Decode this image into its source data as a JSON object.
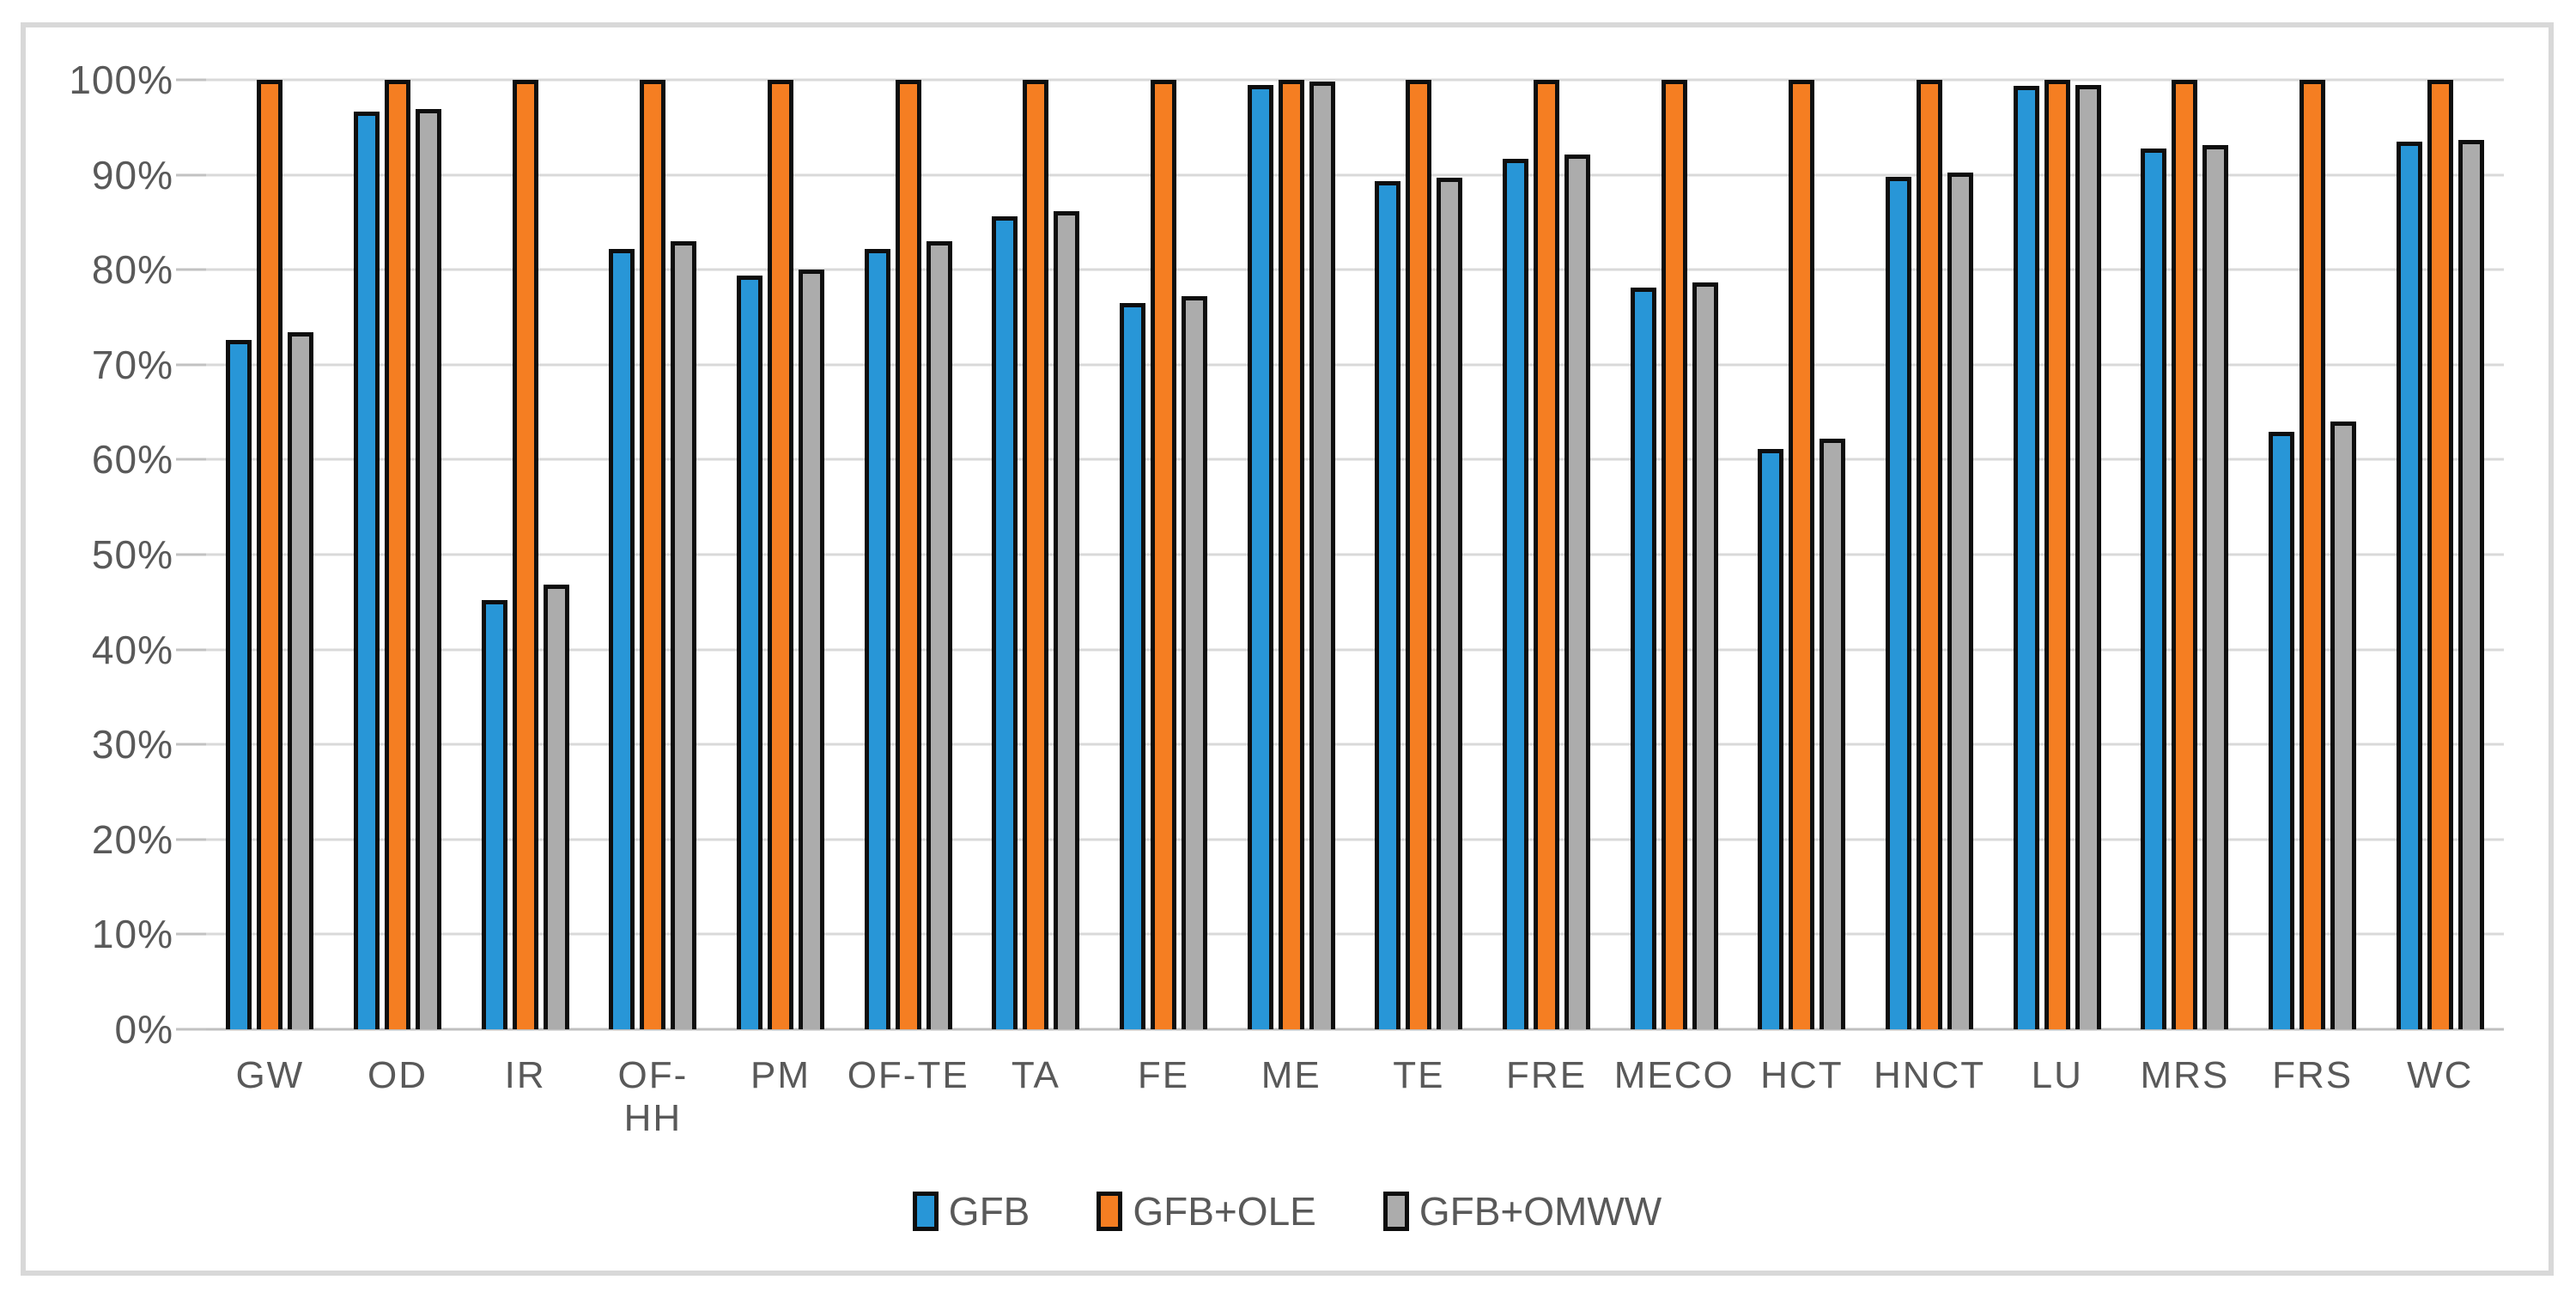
{
  "figure": {
    "background": "#FFFFFF",
    "border_color": "#D8D8D8",
    "text_color": "#595959"
  },
  "y_axis": {
    "tick_labels": [
      "100%",
      "90%",
      "80%",
      "70%",
      "60%",
      "50%",
      "40%",
      "30%",
      "20%",
      "10%",
      "0%"
    ],
    "min": 0,
    "max": 100,
    "step": 10
  },
  "legend": {
    "items": [
      {
        "label": "GFB",
        "color": "#2896D7",
        "marker": "blue-square"
      },
      {
        "label": "GFB+OLE",
        "color": "#F57E22",
        "marker": "orange-square"
      },
      {
        "label": "GFB+OMWW",
        "color": "#ACACAC",
        "marker": "gray-square"
      }
    ]
  },
  "chart_data": {
    "type": "bar",
    "title": "",
    "xlabel": "",
    "ylabel": "",
    "ylim": [
      0,
      100
    ],
    "ytick_step": 10,
    "ytick_format": "percent",
    "grid": "horizontal",
    "gridline_color": "#D9D9D9",
    "axisline_color": "#BFBFBF",
    "bar_border_color": "#0E0E0E",
    "legend_position": "bottom",
    "categories": [
      "GW",
      "OD",
      "IR",
      "OF-HH",
      "PM",
      "OF-TE",
      "TA",
      "FE",
      "ME",
      "TE",
      "FRE",
      "MECO",
      "HCT",
      "HNCT",
      "LU",
      "MRS",
      "FRS",
      "WC"
    ],
    "series": [
      {
        "name": "GFB",
        "color": "#2896D7",
        "values": [
          72.6,
          96.7,
          45.2,
          82.2,
          79.4,
          82.2,
          85.6,
          76.5,
          99.5,
          89.3,
          91.7,
          78.1,
          61.1,
          89.8,
          99.4,
          92.8,
          62.9,
          93.5
        ]
      },
      {
        "name": "GFB+OLE",
        "color": "#F57E22",
        "values": [
          100,
          100,
          100,
          100,
          100,
          100,
          100,
          100,
          100,
          100,
          100,
          100,
          100,
          100,
          100,
          100,
          100,
          100
        ]
      },
      {
        "name": "GFB+OMWW",
        "color": "#ACACAC",
        "values": [
          73.4,
          96.9,
          46.8,
          83.0,
          80.0,
          83.0,
          86.2,
          77.2,
          99.8,
          89.7,
          92.1,
          78.7,
          62.2,
          90.2,
          99.5,
          93.1,
          64.0,
          93.7
        ]
      }
    ]
  }
}
